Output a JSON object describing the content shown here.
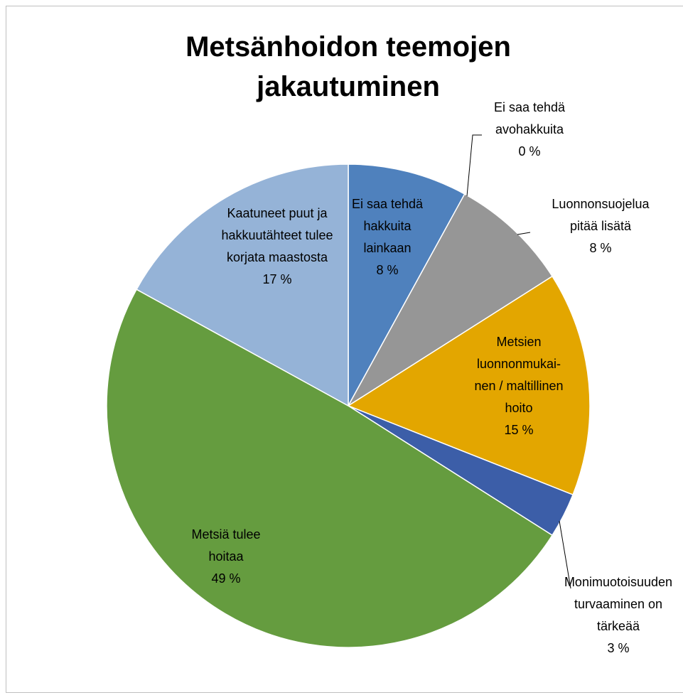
{
  "chart_data": {
    "type": "pie",
    "title": "Metsänhoidon teemojen jakautuminen",
    "categories": [
      "Ei saa tehdä hakkuita lainkaan",
      "Ei saa tehdä avohakkuita",
      "Luonnonsuoje­lua pitää lisätä",
      "Metsien luonnonmukai­nen / maltillinen hoito",
      "Monimuotoi­suuden turvaaminen on tärkeää",
      "Metsiä tulee hoitaa",
      "Kaatuneet puut ja hakkuutähteet tulee korjata maastosta"
    ],
    "values": [
      8,
      0,
      8,
      15,
      3,
      49,
      17
    ],
    "value_labels": [
      "8 %",
      "0 %",
      "8 %",
      "15 %",
      "3 %",
      "49 %",
      "17 %"
    ],
    "colors": [
      "#4f81bd",
      "#c0504d",
      "#969696",
      "#e3a600",
      "#3c5ea8",
      "#659c3f",
      "#95b3d7"
    ]
  }
}
